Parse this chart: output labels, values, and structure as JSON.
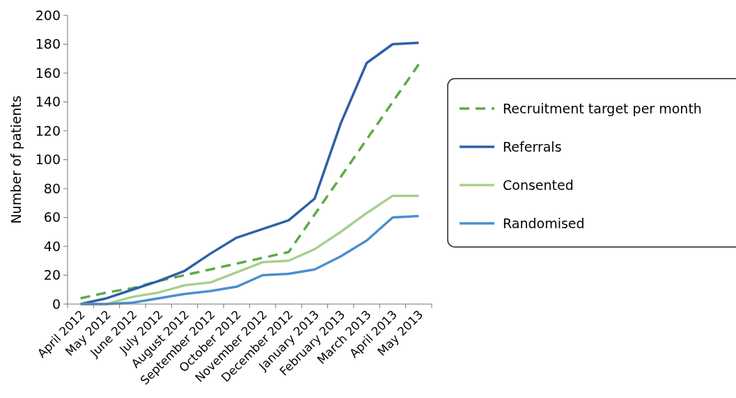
{
  "chart_data": {
    "type": "line",
    "ylabel": "Number of patients",
    "categories": [
      "April 2012",
      "May 2012",
      "June 2012",
      "July 2012",
      "August 2012",
      "September 2012",
      "October 2012",
      "November 2012",
      "December 2012",
      "January 2013",
      "February 2013",
      "March 2013",
      "April 2013",
      "May 2013"
    ],
    "series": [
      {
        "name": "Recruitment target per month",
        "color": "#5aac44",
        "line_style": "dashed",
        "values": [
          4,
          8,
          11,
          16,
          20,
          24,
          28,
          32,
          36,
          62,
          88,
          114,
          140,
          166
        ]
      },
      {
        "name": "Referrals",
        "color": "#2e5fa8",
        "line_style": "solid",
        "values": [
          0,
          4,
          10,
          16,
          23,
          35,
          46,
          52,
          58,
          73,
          125,
          167,
          180,
          181
        ]
      },
      {
        "name": "Consented",
        "color": "#a8d08d",
        "line_style": "solid",
        "values": [
          0,
          0,
          5,
          8,
          13,
          15,
          22,
          29,
          30,
          38,
          50,
          63,
          75,
          75
        ]
      },
      {
        "name": "Randomised",
        "color": "#4a8fd0",
        "line_style": "solid",
        "values": [
          0,
          0,
          1,
          4,
          7,
          9,
          12,
          20,
          21,
          24,
          33,
          44,
          60,
          61
        ]
      }
    ],
    "ylim": [
      0,
      200
    ],
    "yticks": [
      0,
      20,
      40,
      60,
      80,
      100,
      120,
      140,
      160,
      180,
      200
    ],
    "legend": "right",
    "grid": false
  }
}
